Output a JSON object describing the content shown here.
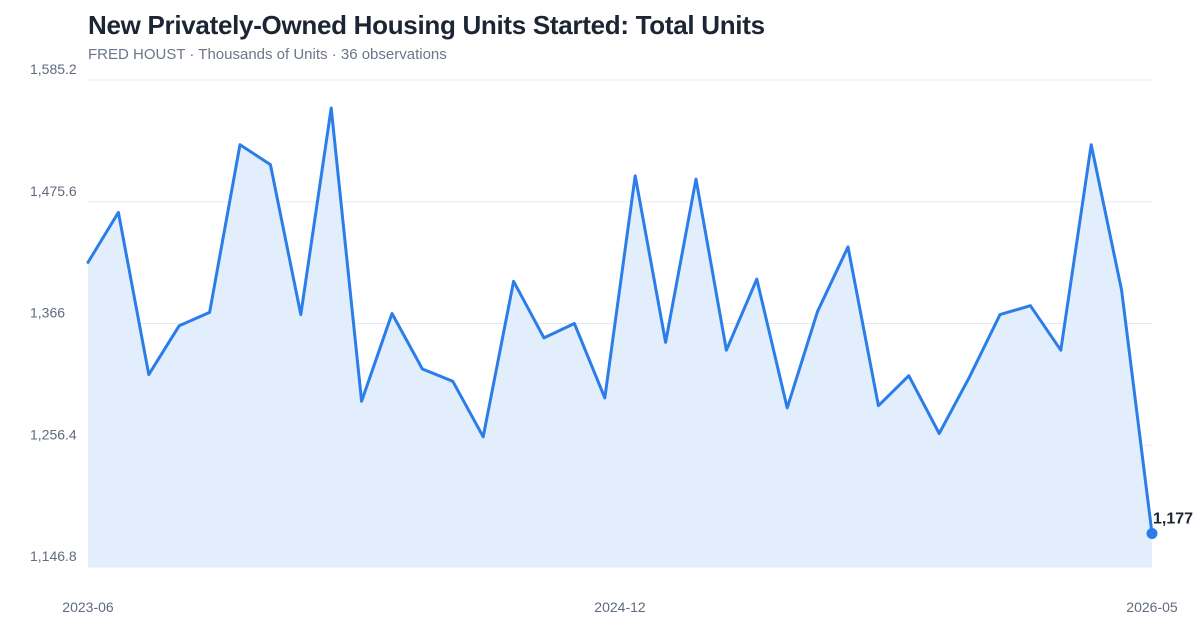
{
  "title": "New Privately-Owned Housing Units Started: Total Units",
  "subtitle": "FRED HOUST · Thousands of Units · 36 observations",
  "colors": {
    "line": "#2b7de9",
    "area": "#e3eefc",
    "grid": "#e6eaf0",
    "text": "#1c2533",
    "muted": "#6b7689"
  },
  "chart_data": {
    "type": "area",
    "ylim": [
      1146.8,
      1585.2
    ],
    "y_ticks": [
      "1,146.8",
      "1,256.4",
      "1,366",
      "1,475.6",
      "1,585.2"
    ],
    "y_tick_values": [
      1146.8,
      1256.4,
      1366,
      1475.6,
      1585.2
    ],
    "x_ticks": [
      "2023-06",
      "2024-12",
      "2026-05"
    ],
    "grid": true,
    "end_label": "1,177",
    "series": [
      {
        "values": [
          1421,
          1466,
          1320,
          1364,
          1376,
          1527,
          1509,
          1374,
          1560,
          1296,
          1375,
          1325,
          1314,
          1264,
          1404,
          1353,
          1366,
          1299,
          1499,
          1349,
          1496,
          1342,
          1406,
          1290,
          1377,
          1435,
          1292,
          1319,
          1267,
          1318,
          1374,
          1382,
          1342,
          1527,
          1396,
          1177
        ]
      }
    ]
  }
}
